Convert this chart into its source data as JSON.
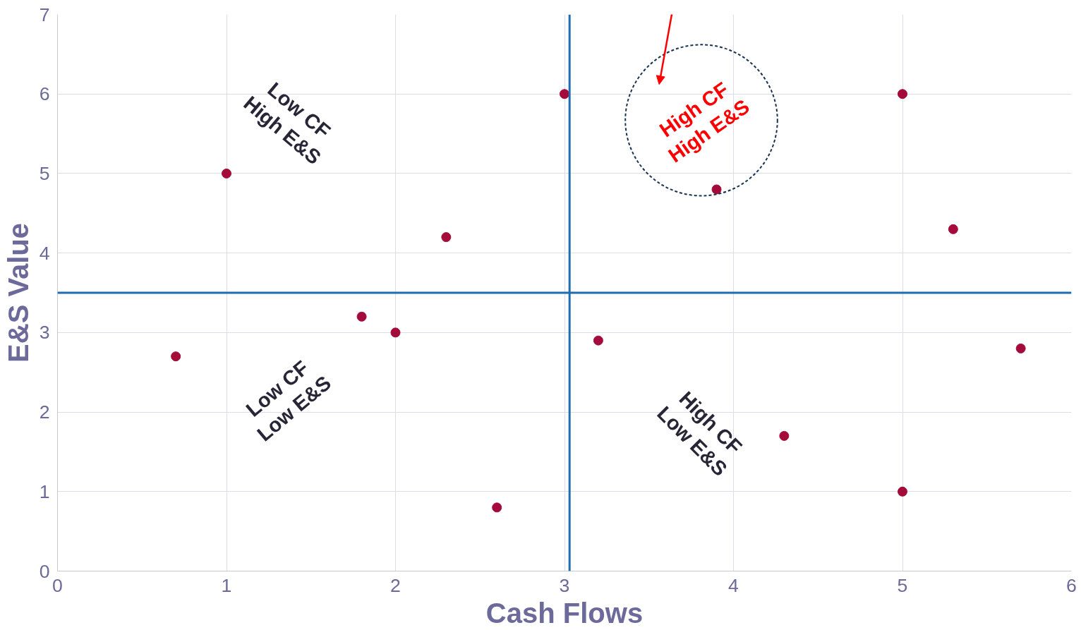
{
  "chart_data": {
    "type": "scatter",
    "xlabel": "Cash Flows",
    "ylabel": "E&S Value",
    "x": [
      0.7,
      1,
      1.8,
      2,
      2.3,
      2.6,
      3,
      3.2,
      3.9,
      4.3,
      5,
      5,
      5.3,
      5.7
    ],
    "values": [
      2.7,
      5,
      3.2,
      3,
      4.2,
      0.8,
      6,
      2.9,
      4.8,
      1.7,
      6,
      1,
      4.3,
      2.8
    ],
    "color": "#a50b3a",
    "marker": "circle",
    "xlim": [
      0,
      6
    ],
    "ylim": [
      0,
      7
    ],
    "xticks": [
      0,
      1,
      2,
      3,
      4,
      5,
      6
    ],
    "yticks": [
      0,
      1,
      2,
      3,
      4,
      5,
      6,
      7
    ],
    "grid": true,
    "ref_lines": [
      {
        "axis": "x",
        "value": 3.03,
        "color": "#1f6db0"
      },
      {
        "axis": "y",
        "value": 3.5,
        "color": "#1f6db0"
      }
    ],
    "annotations": [
      "High CF\nHigh E&S",
      "Low CF\nHigh E&S",
      "Low CF\nLow E&S",
      "High CF\nLow E&S"
    ]
  }
}
